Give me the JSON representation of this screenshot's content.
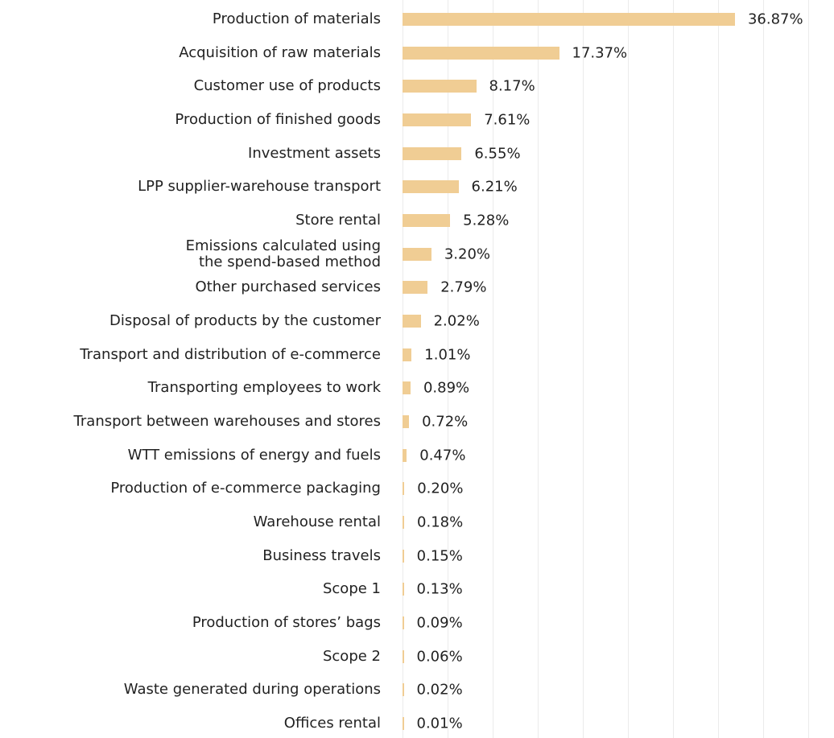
{
  "chart_data": {
    "type": "bar",
    "orientation": "horizontal",
    "color": "#f0cd94",
    "grid": true,
    "categories": [
      "Production of materials",
      "Acquisition of raw materials",
      "Customer use of products",
      "Production of finished goods",
      "Investment assets",
      "LPP supplier-warehouse transport",
      "Store rental",
      "Emissions calculated using\nthe spend-based method",
      "Other purchased services",
      "Disposal of products by the customer",
      "Transport and distribution of e-commerce",
      "Transporting employees to work",
      "Transport between warehouses and stores",
      "WTT emissions of energy and fuels",
      "Production of e-commerce packaging",
      "Warehouse rental",
      "Business travels",
      "Scope 1",
      "Production of stores’ bags",
      "Scope 2",
      "Waste generated during operations",
      "Offices rental"
    ],
    "values": [
      36.87,
      17.37,
      8.17,
      7.61,
      6.55,
      6.21,
      5.28,
      3.2,
      2.79,
      2.02,
      1.01,
      0.89,
      0.72,
      0.47,
      0.2,
      0.18,
      0.15,
      0.13,
      0.09,
      0.06,
      0.02,
      0.01
    ],
    "value_labels": [
      "36.87%",
      "17.37%",
      "8.17%",
      "7.61%",
      "6.55%",
      "6.21%",
      "5.28%",
      "3.20%",
      "2.79%",
      "2.02%",
      "1.01%",
      "0.89%",
      "0.72%",
      "0.47%",
      "0.20%",
      "0.18%",
      "0.15%",
      "0.13%",
      "0.09%",
      "0.06%",
      "0.02%",
      "0.01%"
    ],
    "xlim": [
      0,
      45
    ],
    "xticks": [
      0,
      5,
      10,
      15,
      20,
      25,
      30,
      35,
      40,
      45
    ]
  }
}
